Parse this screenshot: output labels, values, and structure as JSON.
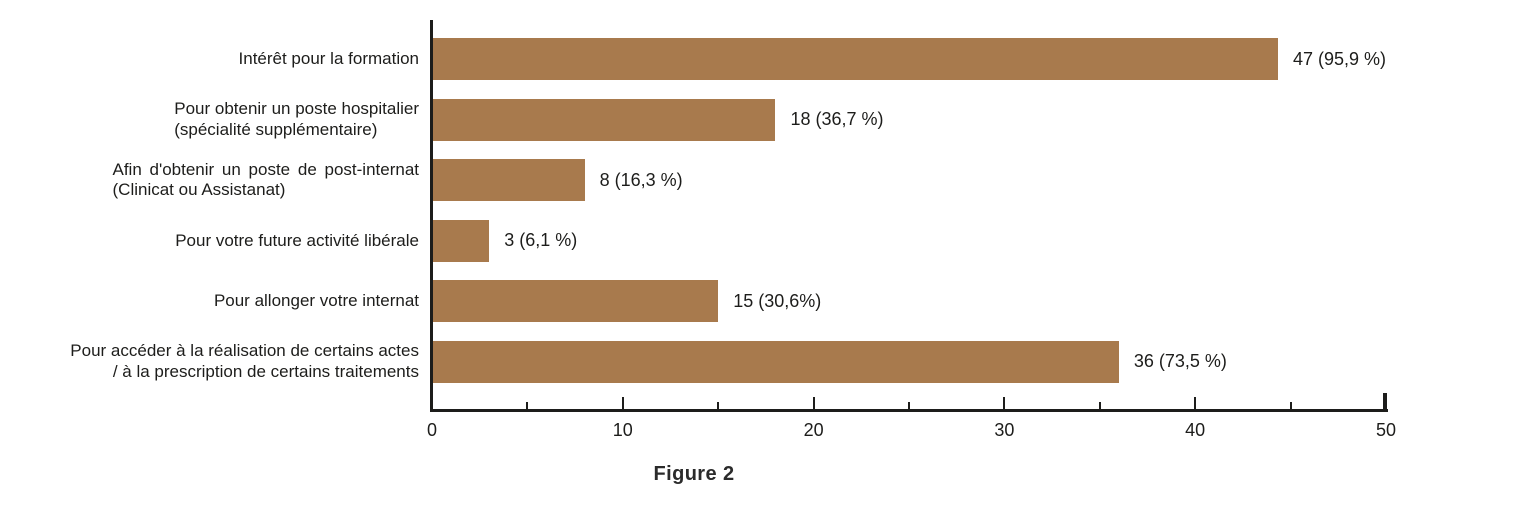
{
  "figure": {
    "caption": "Figure 2"
  },
  "colors": {
    "bar": "#a87a4d",
    "axis": "#1d1d1b",
    "text": "#1d1d1b",
    "background": "#ffffff"
  },
  "chart_data": {
    "type": "bar",
    "orientation": "horizontal",
    "title": "Figure 2",
    "xlabel": "",
    "ylabel": "",
    "xlim": [
      0,
      50
    ],
    "x_major_ticks": [
      0,
      10,
      20,
      30,
      40,
      50
    ],
    "x_minor_ticks": [
      5,
      15,
      25,
      35,
      45
    ],
    "grid": false,
    "legend": false,
    "categories": [
      "Intérêt pour la formation",
      "Pour obtenir un poste hospitalier (spécialité supplémentaire)",
      "Afin d'obtenir un poste de post-internat (Clinicat ou Assistanat)",
      "Pour votre future activité libérale",
      "Pour allonger votre internat",
      "Pour accéder à la réalisation de certains actes / à la prescription de certains traitements"
    ],
    "category_lines": [
      [
        "Intérêt pour la formation"
      ],
      [
        "Pour obtenir un poste hospitalier",
        "(spécialité supplémentaire)"
      ],
      [
        "Afin d'obtenir un poste de post-internat",
        "(Clinicat ou Assistanat)"
      ],
      [
        "Pour votre future activité libérale"
      ],
      [
        "Pour allonger votre internat"
      ],
      [
        "Pour accéder à la réalisation de certains actes",
        "/ à la prescription de certains traitements"
      ]
    ],
    "values": [
      47,
      18,
      8,
      3,
      15,
      36
    ],
    "value_labels": [
      "47 (95,9 %)",
      "18 (36,7 %)",
      "8 (16,3 %)",
      "3 (6,1 %)",
      "15 (30,6%)",
      "36 (73,5 %)"
    ]
  }
}
